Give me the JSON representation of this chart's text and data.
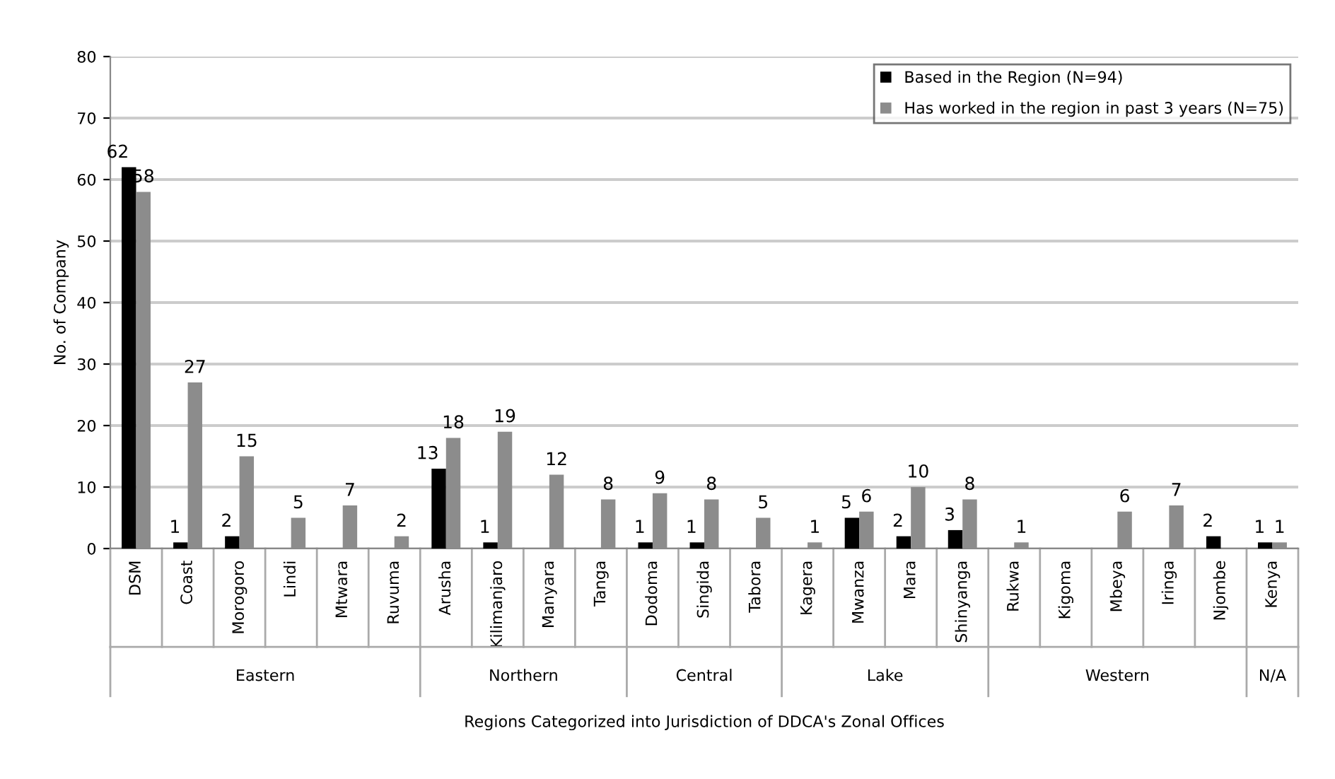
{
  "chart_data": {
    "type": "bar",
    "xlabel": "Regions Categorized into Jurisdiction of DDCA's Zonal Offices",
    "ylabel": "No. of Company",
    "categories": [
      "DSM",
      "Coast",
      "Morogoro",
      "Lindi",
      "Mtwara",
      "Ruvuma",
      "Arusha",
      "Kilimanjaro",
      "Manyara",
      "Tanga",
      "Dodoma",
      "Singida",
      "Tabora",
      "Kagera",
      "Mwanza",
      "Mara",
      "Shinyanga",
      "Rukwa",
      "Kigoma",
      "Mbeya",
      "Iringa",
      "Njombe",
      "Kenya"
    ],
    "series": [
      {
        "name": "Based in the Region (N=94)",
        "color": "#000000",
        "values": [
          62,
          1,
          2,
          0,
          0,
          0,
          13,
          1,
          0,
          0,
          1,
          1,
          0,
          0,
          5,
          2,
          3,
          0,
          0,
          0,
          0,
          2,
          1
        ],
        "value_labels": [
          "62",
          "1",
          "2",
          null,
          null,
          null,
          "13",
          "1",
          null,
          null,
          "1",
          "1",
          null,
          null,
          "5",
          "2",
          "3",
          null,
          null,
          null,
          null,
          "2",
          "1"
        ]
      },
      {
        "name": "Has worked in the region in past 3 years (N=75)",
        "color": "#8c8c8c",
        "values": [
          58,
          27,
          15,
          5,
          7,
          2,
          18,
          19,
          12,
          8,
          9,
          8,
          5,
          1,
          6,
          10,
          8,
          1,
          0,
          6,
          7,
          0,
          1
        ],
        "value_labels": [
          "58",
          "27",
          "15",
          "5",
          "7",
          "2",
          "18",
          "19",
          "12",
          "8",
          "9",
          "8",
          "5",
          "1",
          "6",
          "10",
          "8",
          "1",
          null,
          "6",
          "7",
          null,
          "1"
        ]
      }
    ],
    "ylim": [
      0,
      80
    ],
    "yticks": [
      0,
      10,
      20,
      30,
      40,
      50,
      60,
      70,
      80
    ],
    "grid": "y",
    "legend": "top right",
    "annotations": [
      "Eastern",
      "Northern",
      "Central",
      "Lake",
      "Western",
      "N/A"
    ]
  }
}
